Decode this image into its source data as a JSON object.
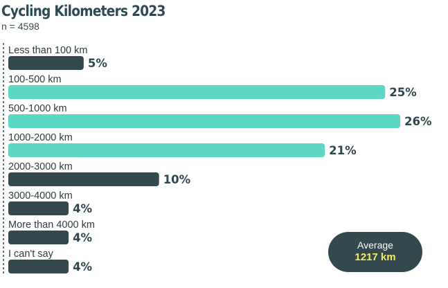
{
  "chart_data": {
    "type": "bar",
    "orientation": "horizontal",
    "title": "Cycling Kilometers 2023",
    "subtitle": "n = 4598",
    "categories": [
      "Less than 100 km",
      "100-500 km",
      "500-1000 km",
      "1000-2000 km",
      "2000-3000 km",
      "3000-4000 km",
      "More than 4000 km",
      "I can't say"
    ],
    "values": [
      5,
      25,
      26,
      21,
      10,
      4,
      4,
      4
    ],
    "value_labels": [
      "5%",
      "25%",
      "26%",
      "21%",
      "10%",
      "4%",
      "4%",
      "4%"
    ],
    "highlighted": [
      false,
      true,
      true,
      true,
      false,
      false,
      false,
      false
    ],
    "xlim": [
      0,
      26
    ],
    "unit": "%",
    "grid": false,
    "colors": {
      "highlight": "#5dd6c3",
      "default": "#34494e",
      "axis": "#3d4f53"
    }
  },
  "average": {
    "label": "Average",
    "value": "1217 km",
    "colors": {
      "background": "#34494e",
      "value": "#f3ea5d"
    }
  }
}
